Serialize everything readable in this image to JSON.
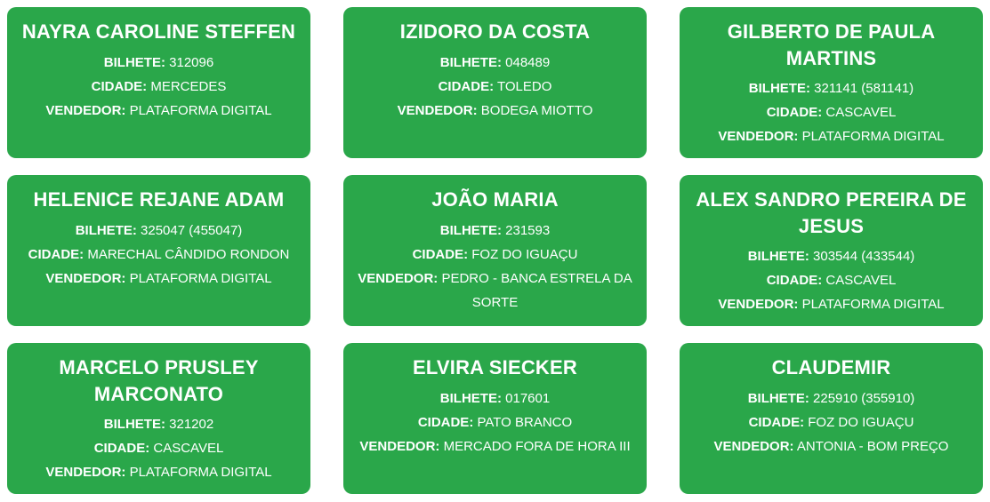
{
  "accent_color": "#2aa74a",
  "text_color": "#ffffff",
  "labels": {
    "ticket": "BILHETE:",
    "city": "CIDADE:",
    "vendor": "VENDEDOR:"
  },
  "winners": [
    {
      "name": "NAYRA CAROLINE STEFFEN",
      "ticket": "312096",
      "city": "MERCEDES",
      "vendor": "PLATAFORMA DIGITAL"
    },
    {
      "name": "IZIDORO DA COSTA",
      "ticket": "048489",
      "city": "TOLEDO",
      "vendor": "BODEGA MIOTTO"
    },
    {
      "name": "GILBERTO DE PAULA MARTINS",
      "ticket": "321141 (581141)",
      "city": "CASCAVEL",
      "vendor": "PLATAFORMA DIGITAL"
    },
    {
      "name": "HELENICE REJANE ADAM",
      "ticket": "325047 (455047)",
      "city": "MARECHAL CÂNDIDO RONDON",
      "vendor": "PLATAFORMA DIGITAL"
    },
    {
      "name": "JOÃO MARIA",
      "ticket": "231593",
      "city": "FOZ DO IGUAÇU",
      "vendor": "PEDRO - BANCA ESTRELA DA SORTE"
    },
    {
      "name": "ALEX SANDRO PEREIRA DE JESUS",
      "ticket": "303544 (433544)",
      "city": "CASCAVEL",
      "vendor": "PLATAFORMA DIGITAL"
    },
    {
      "name": "MARCELO PRUSLEY MARCONATO",
      "ticket": "321202",
      "city": "CASCAVEL",
      "vendor": "PLATAFORMA DIGITAL"
    },
    {
      "name": "ELVIRA SIECKER",
      "ticket": "017601",
      "city": "PATO BRANCO",
      "vendor": "MERCADO FORA DE HORA III"
    },
    {
      "name": "CLAUDEMIR",
      "ticket": "225910 (355910)",
      "city": "FOZ DO IGUAÇU",
      "vendor": "ANTONIA - BOM PREÇO"
    }
  ]
}
